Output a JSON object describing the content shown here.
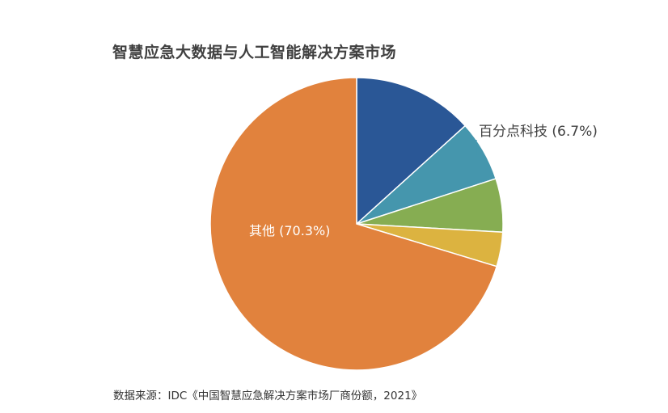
{
  "chart_data": {
    "type": "pie",
    "title": "智慧应急大数据与人工智能解决方案市场",
    "slices": [
      {
        "value": 13.3,
        "color": "#2a5796",
        "label": ""
      },
      {
        "value": 6.7,
        "color": "#4596ad",
        "label": "百分点科技 (6.7%)"
      },
      {
        "value": 5.9,
        "color": "#86ad52",
        "label": ""
      },
      {
        "value": 3.8,
        "color": "#dcb340",
        "label": ""
      },
      {
        "value": 70.3,
        "color": "#e1823d",
        "label": "其他 (70.3%)"
      }
    ],
    "source": "数据来源：IDC《中国智慧应急解决方案市场厂商份额，2021》"
  }
}
